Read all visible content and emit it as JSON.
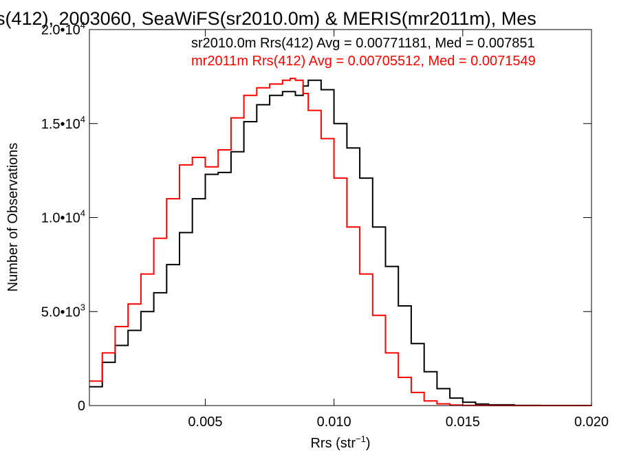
{
  "chart_data": {
    "type": "line",
    "title": "s(412), 2003060, SeaWiFS(sr2010.0m) & MERIS(mr2011m), Mes",
    "xlabel": "Rrs (str",
    "xlabel_sup": "−1",
    "xlabel_close": ")",
    "ylabel": "Number of Observations",
    "xlim": [
      0.0005,
      0.02
    ],
    "ylim": [
      0,
      20000
    ],
    "xticks": [
      {
        "value": 0.005,
        "label": "0.005"
      },
      {
        "value": 0.01,
        "label": "0.010"
      },
      {
        "value": 0.015,
        "label": "0.015"
      },
      {
        "value": 0.02,
        "label": "0.020"
      }
    ],
    "yticks": [
      {
        "value": 0,
        "mant": "0",
        "exp": ""
      },
      {
        "value": 5000,
        "mant": "5.0•10",
        "exp": "3"
      },
      {
        "value": 10000,
        "mant": "1.0•10",
        "exp": "4"
      },
      {
        "value": 15000,
        "mant": "1.5•10",
        "exp": "4"
      },
      {
        "value": 20000,
        "mant": "2.0•10",
        "exp": "4"
      }
    ],
    "annotations": [
      {
        "text": "sr2010.0m Rrs(412) Avg = 0.00771181, Med = 0.007851",
        "color": "#000000"
      },
      {
        "text": "mr2011m Rrs(412) Avg = 0.00705512, Med = 0.0071549",
        "color": "#ff0000"
      }
    ],
    "series": [
      {
        "color": "#000000",
        "x": [
          0.0005,
          0.001,
          0.0015,
          0.002,
          0.0025,
          0.003,
          0.0035,
          0.004,
          0.0045,
          0.005,
          0.0055,
          0.006,
          0.0065,
          0.007,
          0.0075,
          0.008,
          0.0085,
          0.0088,
          0.009,
          0.0093,
          0.0095,
          0.01,
          0.0105,
          0.011,
          0.0115,
          0.012,
          0.0125,
          0.013,
          0.0135,
          0.014,
          0.0145,
          0.015,
          0.0155,
          0.016,
          0.017,
          0.018,
          0.02
        ],
        "values": [
          1000,
          2300,
          3200,
          4000,
          5000,
          6000,
          7500,
          9200,
          11000,
          12300,
          12400,
          13500,
          15100,
          16000,
          16500,
          16700,
          16500,
          17000,
          17300,
          17300,
          16800,
          15000,
          13700,
          12100,
          9500,
          7400,
          5300,
          3300,
          1800,
          900,
          400,
          180,
          80,
          40,
          10,
          4,
          0
        ]
      },
      {
        "color": "#ff0000",
        "x": [
          0.0005,
          0.001,
          0.0015,
          0.002,
          0.0025,
          0.003,
          0.0035,
          0.004,
          0.0045,
          0.005,
          0.0055,
          0.006,
          0.0065,
          0.007,
          0.0075,
          0.008,
          0.0083,
          0.0085,
          0.0088,
          0.009,
          0.0095,
          0.01,
          0.0105,
          0.011,
          0.0115,
          0.012,
          0.0125,
          0.013,
          0.0135,
          0.014,
          0.0145,
          0.015,
          0.016,
          0.017,
          0.018,
          0.02
        ],
        "values": [
          1300,
          2800,
          4200,
          5400,
          7000,
          8900,
          11000,
          12800,
          13200,
          12700,
          13600,
          15300,
          16500,
          16900,
          17100,
          17300,
          17400,
          17300,
          16600,
          15700,
          14200,
          12100,
          9500,
          7000,
          4800,
          2800,
          1500,
          700,
          250,
          90,
          30,
          10,
          3,
          1,
          0,
          0
        ]
      }
    ]
  }
}
